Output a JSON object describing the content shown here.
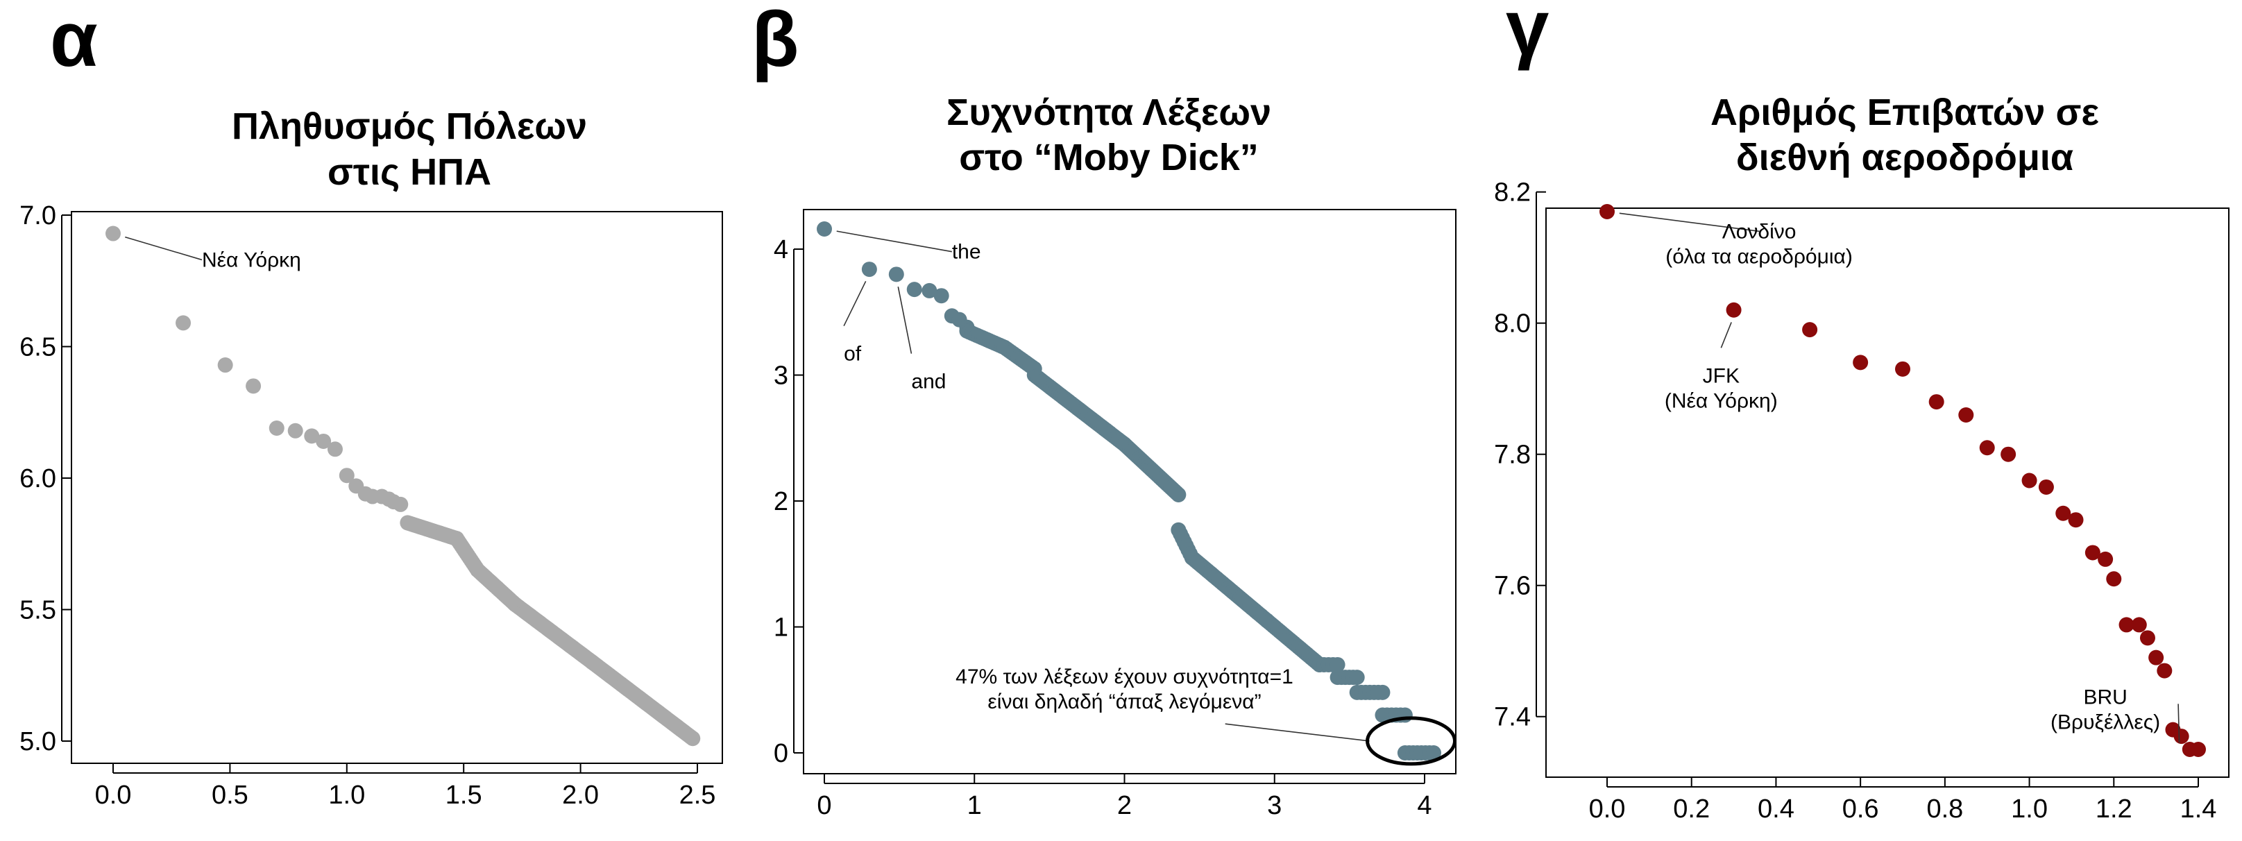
{
  "chart_data": [
    {
      "panel_label": "α",
      "type": "scatter",
      "title": [
        "Πληθυσμός Πόλεων",
        "στις ΗΠΑ"
      ],
      "xlabel": "",
      "ylabel": "",
      "xlim": [
        0,
        2.5
      ],
      "ylim": [
        5.0,
        7.0
      ],
      "xticks": [
        "0.0",
        "0.5",
        "1.0",
        "1.5",
        "2.0",
        "2.5"
      ],
      "yticks": [
        "5.0",
        "5.5",
        "6.0",
        "6.5",
        "7.0"
      ],
      "point_color": "#aaaaaa",
      "points": [
        [
          0.0,
          6.93
        ],
        [
          0.3,
          6.59
        ],
        [
          0.48,
          6.43
        ],
        [
          0.6,
          6.35
        ],
        [
          0.7,
          6.19
        ],
        [
          0.78,
          6.18
        ],
        [
          0.85,
          6.16
        ],
        [
          0.9,
          6.14
        ],
        [
          0.95,
          6.11
        ],
        [
          1.0,
          6.01
        ],
        [
          1.04,
          5.97
        ],
        [
          1.08,
          5.94
        ],
        [
          1.11,
          5.93
        ],
        [
          1.15,
          5.93
        ],
        [
          1.18,
          5.92
        ],
        [
          1.2,
          5.91
        ],
        [
          1.23,
          5.9
        ]
      ],
      "series_runs": [
        {
          "x0": 1.26,
          "x1": 1.47,
          "y0": 5.83,
          "y1": 5.77,
          "n": 30
        },
        {
          "x0": 1.47,
          "x1": 1.56,
          "y0": 5.77,
          "y1": 5.65,
          "n": 14
        },
        {
          "x0": 1.56,
          "x1": 1.72,
          "y0": 5.65,
          "y1": 5.52,
          "n": 22
        },
        {
          "x0": 1.72,
          "x1": 2.05,
          "y0": 5.52,
          "y1": 5.3,
          "n": 45
        },
        {
          "x0": 2.05,
          "x1": 2.48,
          "y0": 5.3,
          "y1": 5.01,
          "n": 60
        }
      ],
      "annotations": [
        {
          "text": "Νέα Υόρκη",
          "x": 0.0,
          "y": 6.93,
          "lx": 0.38,
          "ly": 6.83
        }
      ]
    },
    {
      "panel_label": "β",
      "type": "scatter",
      "title": [
        "Συχνότητα Λέξεων",
        "στο “Moby Dick”"
      ],
      "xlabel": "",
      "ylabel": "",
      "xlim": [
        0,
        4
      ],
      "ylim": [
        0,
        4.16
      ],
      "xticks": [
        "0",
        "1",
        "2",
        "3",
        "4"
      ],
      "yticks": [
        "0",
        "1",
        "2",
        "3",
        "4"
      ],
      "point_color": "#5f7f8c",
      "points": [
        [
          0.0,
          4.16
        ],
        [
          0.3,
          3.84
        ],
        [
          0.48,
          3.8
        ],
        [
          0.6,
          3.68
        ],
        [
          0.7,
          3.67
        ],
        [
          0.78,
          3.63
        ],
        [
          0.85,
          3.47
        ],
        [
          0.9,
          3.44
        ],
        [
          0.95,
          3.38
        ]
      ],
      "series_runs": [
        {
          "x0": 0.95,
          "x1": 1.2,
          "y0": 3.35,
          "y1": 3.22,
          "n": 16
        },
        {
          "x0": 1.2,
          "x1": 1.4,
          "y0": 3.22,
          "y1": 3.05,
          "n": 14
        },
        {
          "x0": 1.4,
          "x1": 2.0,
          "y0": 3.0,
          "y1": 2.45,
          "n": 45
        },
        {
          "x0": 2.0,
          "x1": 2.36,
          "y0": 2.45,
          "y1": 2.05,
          "n": 30
        },
        {
          "x0": 2.36,
          "x1": 2.45,
          "y0": 1.77,
          "y1": 1.55,
          "n": 8
        },
        {
          "x0": 2.45,
          "x1": 2.95,
          "y0": 1.55,
          "y1": 1.05,
          "n": 40
        },
        {
          "x0": 2.95,
          "x1": 3.3,
          "y0": 1.05,
          "y1": 0.7,
          "n": 26
        }
      ],
      "level_runs": [
        {
          "x0": 3.3,
          "x1": 3.42,
          "y": 0.7
        },
        {
          "x0": 3.42,
          "x1": 3.55,
          "y": 0.6
        },
        {
          "x0": 3.55,
          "x1": 3.72,
          "y": 0.48
        },
        {
          "x0": 3.72,
          "x1": 3.87,
          "y": 0.3
        },
        {
          "x0": 3.87,
          "x1": 4.06,
          "y": 0.0
        }
      ],
      "annotations": [
        {
          "text": "the",
          "x": 0.0,
          "y": 4.16,
          "lx": 0.85,
          "ly": 3.98
        },
        {
          "text": "of",
          "x": 0.3,
          "y": 3.84,
          "lx": 0.13,
          "ly": 3.17
        },
        {
          "text": "and",
          "x": 0.48,
          "y": 3.8,
          "lx": 0.58,
          "ly": 2.95
        }
      ],
      "callout": {
        "lines": [
          "47% των λέξεων έχουν συχνότητα=1",
          "είναι δηλαδή “άπαξ λεγόμενα”"
        ],
        "tx": 2.0,
        "ty": 0.55,
        "ax": 3.55,
        "ay": 0.12,
        "cx": 3.91,
        "cy": 0.05
      }
    },
    {
      "panel_label": "γ",
      "type": "scatter",
      "title": [
        "Αριθμός Επιβατών σε",
        "διεθνή αεροδρόμια"
      ],
      "xlabel": "",
      "ylabel": "",
      "xlim": [
        0,
        1.4
      ],
      "ylim": [
        7.35,
        8.17
      ],
      "xticks": [
        "0.0",
        "0.2",
        "0.4",
        "0.6",
        "0.8",
        "1.0",
        "1.2",
        "1.4"
      ],
      "yticks": [
        "7.4",
        "7.6",
        "7.8",
        "8.0",
        "8.2"
      ],
      "point_color": "#8b0a0a",
      "points": [
        [
          0.0,
          8.17
        ],
        [
          0.3,
          8.02
        ],
        [
          0.48,
          7.99
        ],
        [
          0.6,
          7.94
        ],
        [
          0.7,
          7.93
        ],
        [
          0.78,
          7.88
        ],
        [
          0.85,
          7.86
        ],
        [
          0.9,
          7.81
        ],
        [
          0.95,
          7.8
        ],
        [
          1.0,
          7.76
        ],
        [
          1.04,
          7.75
        ],
        [
          1.08,
          7.71
        ],
        [
          1.11,
          7.7
        ],
        [
          1.15,
          7.65
        ],
        [
          1.18,
          7.64
        ],
        [
          1.2,
          7.61
        ],
        [
          1.23,
          7.54
        ],
        [
          1.26,
          7.54
        ],
        [
          1.28,
          7.52
        ],
        [
          1.3,
          7.49
        ],
        [
          1.32,
          7.47
        ],
        [
          1.34,
          7.38
        ],
        [
          1.36,
          7.37
        ],
        [
          1.38,
          7.35
        ],
        [
          1.4,
          7.35
        ]
      ],
      "annotations": [
        {
          "text": [
            "Λονδίνο",
            "(όλα τα αεροδρόμια)"
          ],
          "x": 0.0,
          "y": 8.17,
          "lx": 0.36,
          "ly": 8.14
        },
        {
          "text": [
            "JFK",
            "(Νέα Υόρκη)"
          ],
          "x": 0.3,
          "y": 8.02,
          "lx": 0.27,
          "ly": 7.92
        },
        {
          "text": [
            "BRU",
            "(Βρυξέλλες)"
          ],
          "x": 1.38,
          "y": 7.35,
          "lx": 1.18,
          "ly": 7.43
        }
      ]
    }
  ]
}
